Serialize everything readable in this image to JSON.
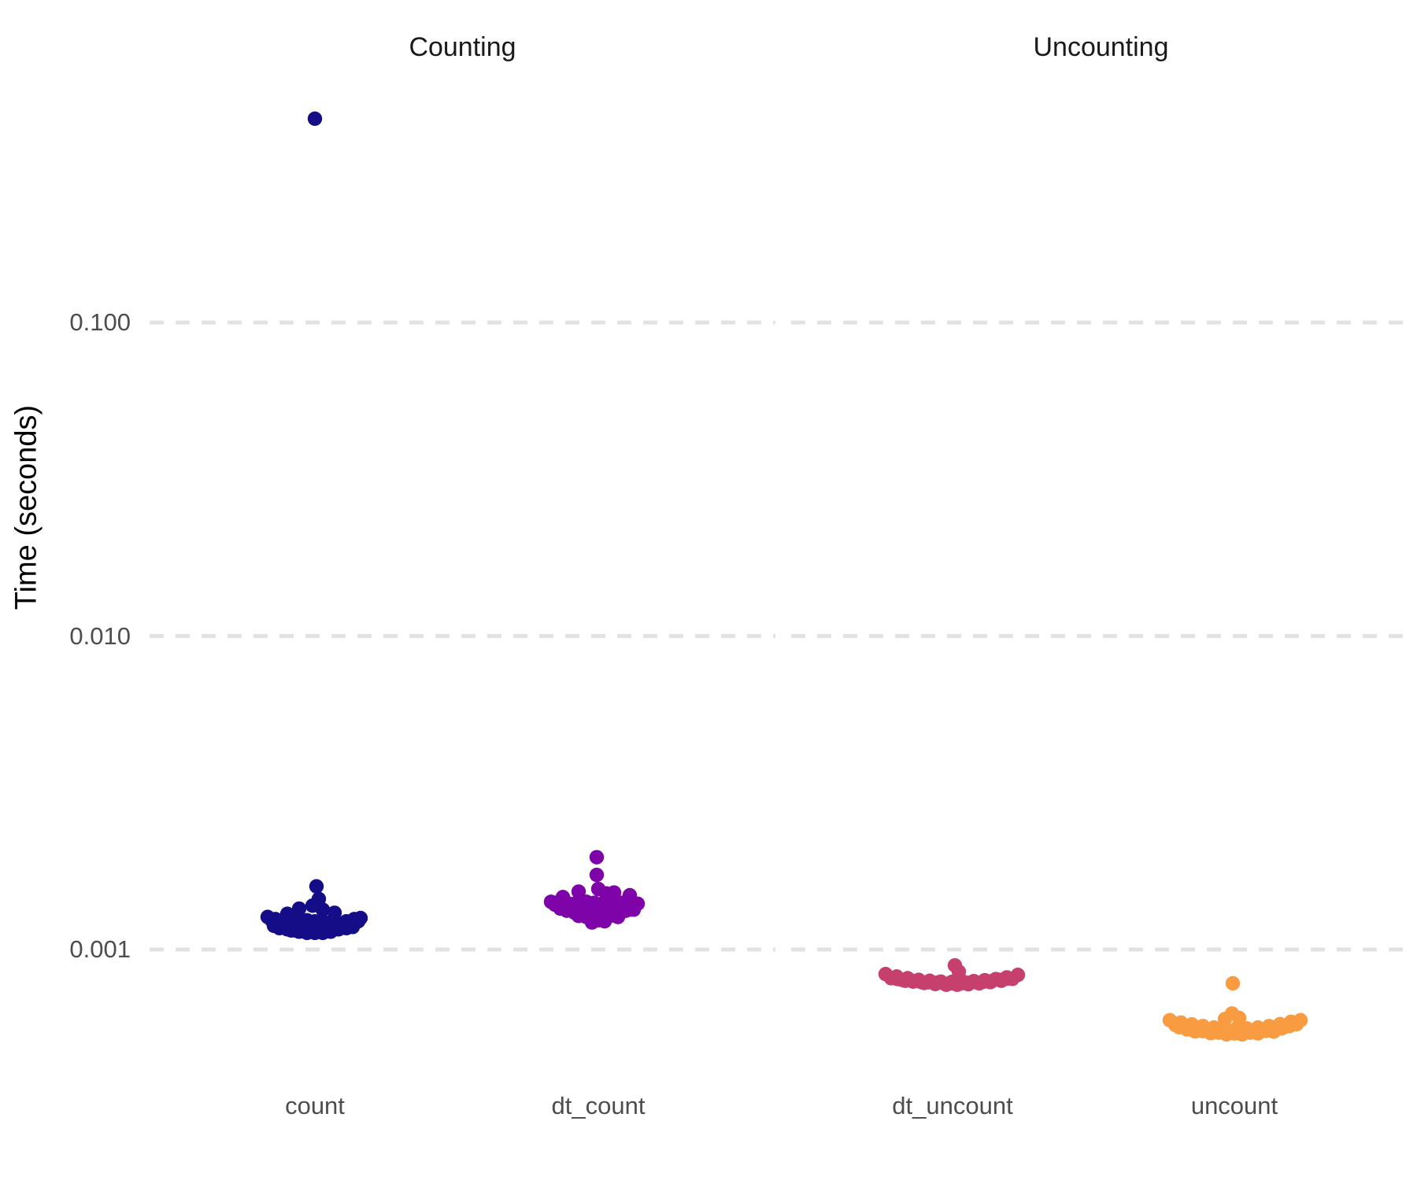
{
  "chart_data": {
    "type": "scatter",
    "subtype": "jitter-strip-plot",
    "title": "",
    "ylabel": "Time (seconds)",
    "xlabel": "",
    "y_scale": "log10",
    "y_range_seconds": [
      0.0004,
      0.6
    ],
    "grid": "dashed horizontal major gridlines only",
    "legend": "none",
    "background_color": "#ffffff",
    "gridline_color": "#e2e2e2",
    "text_color_ticks": "#4d4d4d",
    "text_color_titles": "#1a1a1a",
    "y_ticks": [
      {
        "label": "0.100",
        "value": 0.1
      },
      {
        "label": "0.010",
        "value": 0.01
      },
      {
        "label": "0.001",
        "value": 0.001
      }
    ],
    "facets": [
      {
        "label": "Counting",
        "categories": [
          "count",
          "dt_count"
        ]
      },
      {
        "label": "Uncounting",
        "categories": [
          "dt_uncount",
          "uncount"
        ]
      }
    ],
    "series": [
      {
        "name": "count",
        "facet": "Counting",
        "color": "#150d87",
        "summary": "dense cluster ~0.00113-0.00135 s, a few points to 0.0016 s, one outlier at ~0.45 s",
        "points": [
          [
            0,
            0.447
          ],
          [
            2,
            0.00159
          ],
          [
            5,
            0.00145
          ],
          [
            -3,
            0.00138
          ],
          [
            -20,
            0.00135
          ],
          [
            10,
            0.00134
          ],
          [
            25,
            0.00131
          ],
          [
            -35,
            0.0013
          ],
          [
            -60,
            0.00127
          ],
          [
            -55,
            0.00124
          ],
          [
            -50,
            0.00125
          ],
          [
            -45,
            0.00122
          ],
          [
            -40,
            0.00124
          ],
          [
            -35,
            0.00121
          ],
          [
            -30,
            0.00123
          ],
          [
            -25,
            0.0012
          ],
          [
            -20,
            0.00125
          ],
          [
            -15,
            0.00122
          ],
          [
            -10,
            0.00124
          ],
          [
            -5,
            0.00121
          ],
          [
            0,
            0.00123
          ],
          [
            5,
            0.0012
          ],
          [
            10,
            0.00123
          ],
          [
            15,
            0.0012
          ],
          [
            20,
            0.00122
          ],
          [
            25,
            0.00119
          ],
          [
            30,
            0.00121
          ],
          [
            35,
            0.00118
          ],
          [
            40,
            0.00123
          ],
          [
            45,
            0.0012
          ],
          [
            50,
            0.00125
          ],
          [
            55,
            0.00123
          ],
          [
            58,
            0.00126
          ],
          [
            -52,
            0.00119
          ],
          [
            -45,
            0.00117
          ],
          [
            -35,
            0.00116
          ],
          [
            -30,
            0.00115
          ],
          [
            -25,
            0.00115
          ],
          [
            -20,
            0.00114
          ],
          [
            -15,
            0.00115
          ],
          [
            -10,
            0.00113
          ],
          [
            -5,
            0.00114
          ],
          [
            0,
            0.00113
          ],
          [
            5,
            0.00115
          ],
          [
            10,
            0.00113
          ],
          [
            15,
            0.00115
          ],
          [
            20,
            0.00114
          ],
          [
            25,
            0.00116
          ],
          [
            30,
            0.00116
          ],
          [
            35,
            0.00118
          ],
          [
            40,
            0.00117
          ],
          [
            48,
            0.00118
          ]
        ]
      },
      {
        "name": "dt_count",
        "facet": "Counting",
        "color": "#7e03a8",
        "summary": "dense cluster ~0.00122-0.00156 s, two isolated points at ~0.00173 and ~0.00197 s",
        "points": [
          [
            -2,
            0.00197
          ],
          [
            -2,
            0.00173
          ],
          [
            -25,
            0.00153
          ],
          [
            0,
            0.00156
          ],
          [
            20,
            0.00152
          ],
          [
            -45,
            0.00147
          ],
          [
            40,
            0.00149
          ],
          [
            10,
            0.00151
          ],
          [
            -60,
            0.00142
          ],
          [
            -55,
            0.00139
          ],
          [
            -50,
            0.00142
          ],
          [
            -45,
            0.00138
          ],
          [
            -40,
            0.00141
          ],
          [
            -35,
            0.00137
          ],
          [
            -30,
            0.0014
          ],
          [
            -25,
            0.00136
          ],
          [
            -20,
            0.00139
          ],
          [
            -15,
            0.00142
          ],
          [
            -10,
            0.00138
          ],
          [
            -5,
            0.00141
          ],
          [
            0,
            0.00137
          ],
          [
            5,
            0.0014
          ],
          [
            10,
            0.00136
          ],
          [
            15,
            0.00139
          ],
          [
            20,
            0.00135
          ],
          [
            25,
            0.00138
          ],
          [
            30,
            0.00141
          ],
          [
            35,
            0.00137
          ],
          [
            40,
            0.00134
          ],
          [
            45,
            0.00137
          ],
          [
            50,
            0.0014
          ],
          [
            -48,
            0.00135
          ],
          [
            -40,
            0.00133
          ],
          [
            -35,
            0.00134
          ],
          [
            -30,
            0.00131
          ],
          [
            -25,
            0.00128
          ],
          [
            -20,
            0.00132
          ],
          [
            -15,
            0.00127
          ],
          [
            -10,
            0.0013
          ],
          [
            -5,
            0.00126
          ],
          [
            0,
            0.00129
          ],
          [
            5,
            0.00127
          ],
          [
            10,
            0.00131
          ],
          [
            15,
            0.00128
          ],
          [
            20,
            0.0013
          ],
          [
            25,
            0.00127
          ],
          [
            30,
            0.00132
          ],
          [
            35,
            0.00133
          ],
          [
            45,
            0.00134
          ],
          [
            0,
            0.00124
          ],
          [
            -8,
            0.00122
          ],
          [
            8,
            0.00123
          ]
        ]
      },
      {
        "name": "dt_uncount",
        "facet": "Uncounting",
        "color": "#c6406e",
        "summary": "flat dense band ~0.00077-0.00084 s with small bump at ~0.0009 s",
        "points": [
          [
            -85,
            0.000835
          ],
          [
            -71,
            0.00082
          ],
          [
            -57,
            0.00081
          ],
          [
            -43,
            0.0008
          ],
          [
            -29,
            0.000795
          ],
          [
            -15,
            0.00079
          ],
          [
            -1,
            0.000788
          ],
          [
            13,
            0.00079
          ],
          [
            27,
            0.000793
          ],
          [
            41,
            0.000798
          ],
          [
            55,
            0.000805
          ],
          [
            69,
            0.000815
          ],
          [
            83,
            0.00083
          ],
          [
            -78,
            0.00081
          ],
          [
            -64,
            0.0008
          ],
          [
            -50,
            0.00079
          ],
          [
            -36,
            0.000782
          ],
          [
            -22,
            0.000776
          ],
          [
            -8,
            0.000772
          ],
          [
            6,
            0.000772
          ],
          [
            20,
            0.000775
          ],
          [
            34,
            0.00078
          ],
          [
            48,
            0.000787
          ],
          [
            62,
            0.000795
          ],
          [
            76,
            0.000806
          ],
          [
            -70,
            0.000805
          ],
          [
            -60,
            0.000795
          ],
          [
            -50,
            0.000793
          ],
          [
            -40,
            0.000788
          ],
          [
            -30,
            0.000786
          ],
          [
            -20,
            0.000783
          ],
          [
            -10,
            0.000778
          ],
          [
            0,
            0.00078
          ],
          [
            10,
            0.000779
          ],
          [
            20,
            0.000783
          ],
          [
            30,
            0.000786
          ],
          [
            40,
            0.00079
          ],
          [
            50,
            0.000793
          ],
          [
            60,
            0.0008
          ],
          [
            70,
            0.000808
          ],
          [
            3,
            0.00089
          ],
          [
            8,
            0.00085
          ]
        ]
      },
      {
        "name": "uncount",
        "facet": "Uncounting",
        "color": "#f99b40",
        "summary": "flat dense band ~0.00053-0.0006 s, center bump ~0.00062 s, one isolated point at ~0.00078 s",
        "points": [
          [
            -2,
            0.00078
          ],
          [
            -82,
            0.000595
          ],
          [
            -68,
            0.000585
          ],
          [
            -54,
            0.000577
          ],
          [
            -40,
            0.00057
          ],
          [
            -26,
            0.000564
          ],
          [
            -12,
            0.00056
          ],
          [
            2,
            0.000558
          ],
          [
            16,
            0.00056
          ],
          [
            30,
            0.000564
          ],
          [
            44,
            0.00057
          ],
          [
            58,
            0.000578
          ],
          [
            72,
            0.000588
          ],
          [
            84,
            0.000595
          ],
          [
            -75,
            0.000575
          ],
          [
            -61,
            0.000567
          ],
          [
            -47,
            0.00056
          ],
          [
            -33,
            0.000554
          ],
          [
            -19,
            0.000549
          ],
          [
            -5,
            0.000546
          ],
          [
            9,
            0.000546
          ],
          [
            23,
            0.000549
          ],
          [
            37,
            0.000554
          ],
          [
            51,
            0.00056
          ],
          [
            65,
            0.000568
          ],
          [
            79,
            0.000578
          ],
          [
            -70,
            0.000565
          ],
          [
            -60,
            0.000556
          ],
          [
            -50,
            0.000548
          ],
          [
            -40,
            0.000549
          ],
          [
            -30,
            0.000541
          ],
          [
            -20,
            0.000543
          ],
          [
            -10,
            0.000536
          ],
          [
            0,
            0.00054
          ],
          [
            10,
            0.000536
          ],
          [
            20,
            0.000543
          ],
          [
            30,
            0.00054
          ],
          [
            40,
            0.00055
          ],
          [
            50,
            0.000547
          ],
          [
            60,
            0.00056
          ],
          [
            70,
            0.00057
          ],
          [
            -3,
            0.000625
          ],
          [
            6,
            0.000605
          ],
          [
            -12,
            0.0006
          ]
        ]
      }
    ]
  }
}
